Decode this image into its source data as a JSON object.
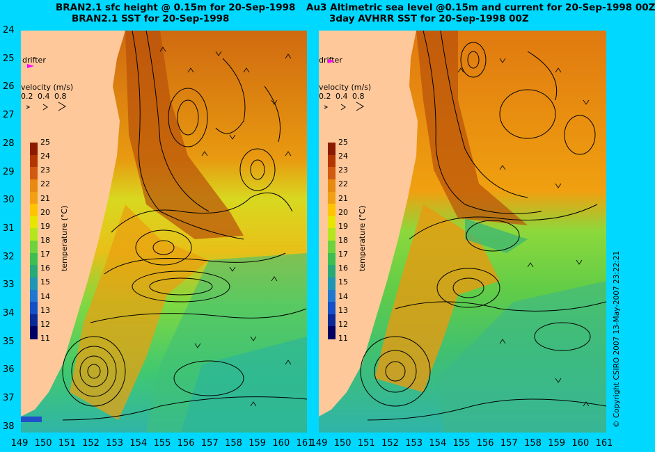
{
  "left_panel": {
    "title_line1": "BRAN2.1 sfc height @ 0.15m for 20-Sep-1998",
    "title_line2": "BRAN2.1 SST for 20-Sep-1998",
    "drifter_label": "drifter",
    "velocity_label": "velocity (m/s)",
    "velocity_scale": [
      "0.2",
      "0.4",
      "0.8"
    ],
    "colorbar_title": "temperature (°C)"
  },
  "right_panel": {
    "title_line1": "Au3 Altimetric sea level  @0.15m and current for 20-Sep-1998 00Z",
    "title_line2": "3day AVHRR SST for 20-Sep-1998 00Z",
    "drifter_label": "drifter",
    "velocity_label": "velocity (m/s)",
    "velocity_scale": [
      "0.2",
      "0.4",
      "0.8"
    ],
    "colorbar_title": "temperature (°C)"
  },
  "y_ticks": [
    "24",
    "25",
    "26",
    "27",
    "28",
    "29",
    "30",
    "31",
    "32",
    "33",
    "34",
    "35",
    "36",
    "37",
    "38"
  ],
  "x_ticks_left": [
    "149",
    "150",
    "151",
    "152",
    "153",
    "154",
    "155",
    "156",
    "157",
    "158",
    "159",
    "160",
    "161"
  ],
  "x_ticks_right": [
    "149",
    "150",
    "151",
    "152",
    "153",
    "154",
    "155",
    "156",
    "157",
    "158",
    "159",
    "160",
    "161"
  ],
  "colorbar_ticks": [
    "25",
    "24",
    "23",
    "22",
    "21",
    "20",
    "19",
    "18",
    "17",
    "16",
    "15",
    "14",
    "13",
    "12",
    "11"
  ],
  "copyright": "© Copyright CSIRO 2007   13-May-2007 23:22:21",
  "colors": {
    "background": "#00d8ff",
    "land": "#ffc89a",
    "drifter_marker": "#ff00ff",
    "contour": "#000000"
  },
  "colorbar_colors": [
    "#8c1a00",
    "#b33600",
    "#d05a10",
    "#e88a10",
    "#f2a012",
    "#ffc400",
    "#e6e600",
    "#b4e61e",
    "#6ed23c",
    "#3cbe50",
    "#28aa78",
    "#1e96b4",
    "#1e78d2",
    "#1450c8",
    "#0a2896",
    "#000064"
  ]
}
